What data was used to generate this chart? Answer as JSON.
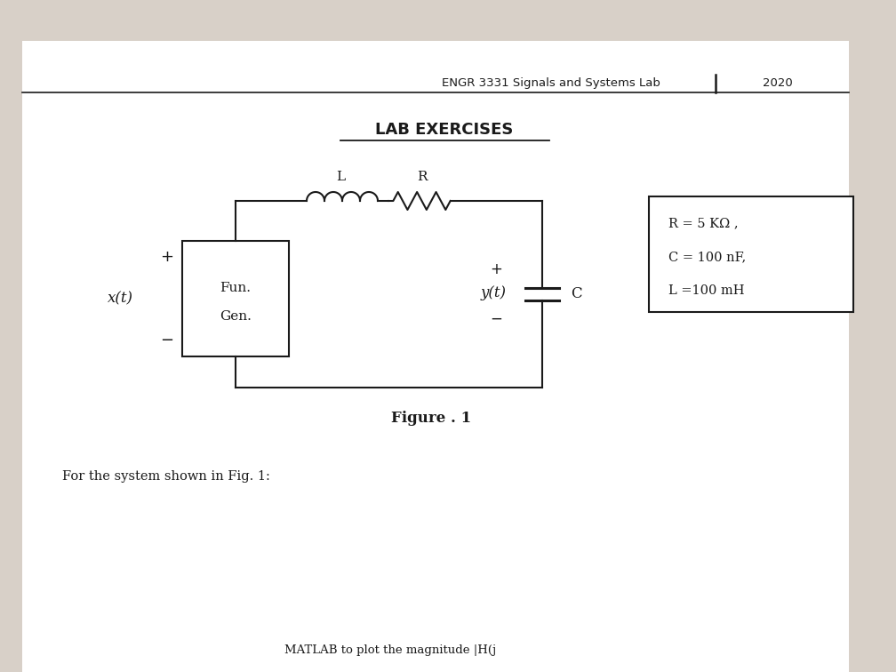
{
  "header_text": "ENGR 3331 Signals and Systems Lab",
  "header_year": "2020",
  "title": "LAB EXERCISES",
  "figure_label": "Figure . 1",
  "bottom_text": "For the system shown in Fig. 1:",
  "bottom_text2": "MATLAB to plot the magnitude |H(j",
  "component_L_label": "L",
  "component_R_label": "R",
  "input_label": "x(t)",
  "source_label1": "Fun.",
  "source_label2": "Gen.",
  "output_label": "y(t)",
  "capacitor_label": "C",
  "plus_sign": "+",
  "minus_sign": "−",
  "params_text": [
    "R = 5 KΩ ,",
    "C = 100 nF,",
    "L =100 mH"
  ],
  "bg_color": "#d8d0c8",
  "paper_color": "#ffffff",
  "line_color": "#1a1a1a",
  "text_color": "#1a1a1a",
  "header_color": "#333333"
}
